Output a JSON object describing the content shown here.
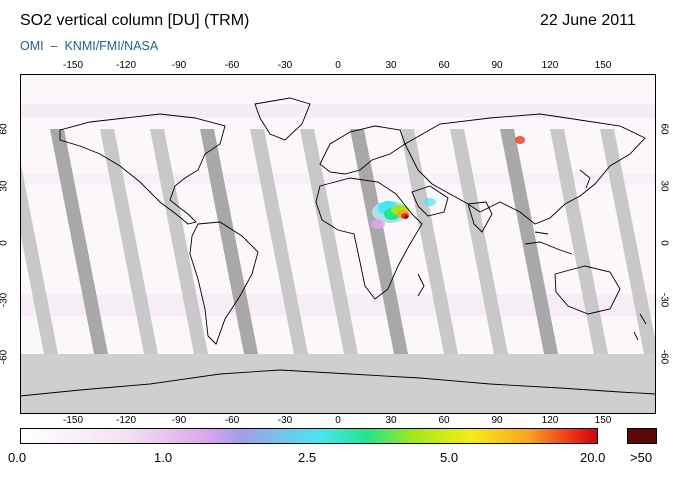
{
  "header": {
    "title": "SO2 vertical column [DU] (TRM)",
    "date": "22 June 2011",
    "credit": "OMI  –  KNMI/FMI/NASA"
  },
  "axes": {
    "lon_ticks": [
      "-150",
      "-120",
      "-90",
      "-60",
      "-30",
      "0",
      "30",
      "60",
      "90",
      "120",
      "150"
    ],
    "lat_ticks": [
      "60",
      "30",
      "0",
      "-30",
      "-60"
    ]
  },
  "colorbar": {
    "labels": [
      "0.0",
      "1.0",
      "2.5",
      "5.0",
      "20.0"
    ],
    "overflow_label": ">50",
    "colors": [
      "#ffffff",
      "#f3e2f3",
      "#dca8ec",
      "#a59ce6",
      "#48e6f4",
      "#22e48c",
      "#a0e81c",
      "#f4ec1c",
      "#f6a61e",
      "#ee3a1c",
      "#d00010"
    ],
    "overflow_color": "#5a0a0a"
  },
  "colors": {
    "missing_gray": "#c8c8c8",
    "dark_gray": "#a8a8a8",
    "polar_gray": "#cfcfcf",
    "coastline": "#000000"
  }
}
